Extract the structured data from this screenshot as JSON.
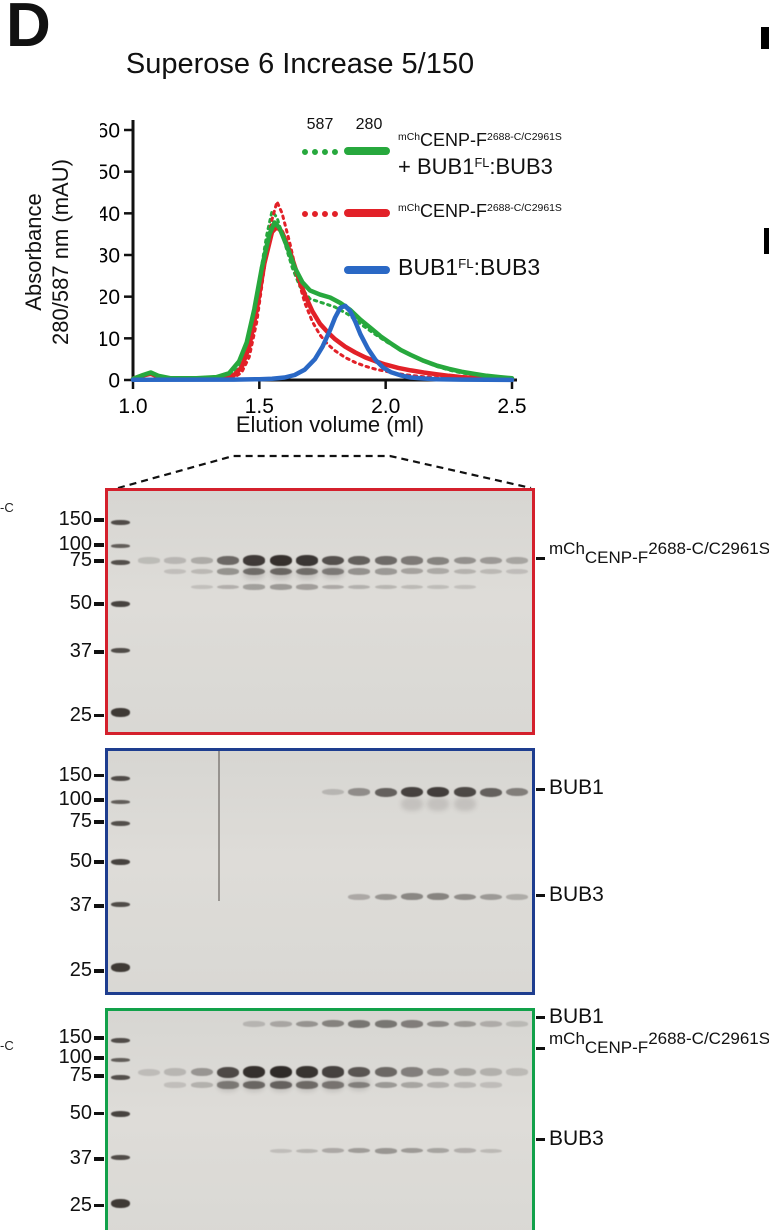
{
  "panel_label": "D",
  "chart_data": {
    "type": "line",
    "title": "Superose 6 Increase 5/150",
    "xlabel": "Elution volume (ml)",
    "ylabel_lines": [
      "Absorbance",
      "280/587 nm (mAU)"
    ],
    "xlim": [
      1.0,
      2.5
    ],
    "ylim": [
      0,
      60
    ],
    "xticks": [
      "1.0",
      "1.5",
      "2.0",
      "2.5"
    ],
    "yticks": [
      0,
      10,
      20,
      30,
      40,
      50,
      60
    ],
    "grid": false,
    "legend_position": "top-right",
    "series": [
      {
        "id": "complex-587",
        "name": "mChCENP-F2688-C/C2961S + BUB1FL:BUB3 (587 nm)",
        "wavelength": "587",
        "color": "#27a83d",
        "style": "dotted",
        "points": [
          [
            1.0,
            0.1
          ],
          [
            1.3,
            0.2
          ],
          [
            1.38,
            0.8
          ],
          [
            1.42,
            3
          ],
          [
            1.46,
            10
          ],
          [
            1.5,
            24
          ],
          [
            1.53,
            35
          ],
          [
            1.55,
            40.5
          ],
          [
            1.57,
            39
          ],
          [
            1.6,
            33
          ],
          [
            1.63,
            27
          ],
          [
            1.66,
            22.5
          ],
          [
            1.7,
            19.5
          ],
          [
            1.75,
            18.5
          ],
          [
            1.8,
            17.5
          ],
          [
            1.85,
            15.8
          ],
          [
            1.9,
            13.5
          ],
          [
            1.95,
            11.3
          ],
          [
            2.0,
            9.3
          ],
          [
            2.05,
            7.5
          ],
          [
            2.1,
            5.9
          ],
          [
            2.15,
            4.5
          ],
          [
            2.2,
            3.3
          ],
          [
            2.25,
            2.4
          ],
          [
            2.3,
            1.7
          ],
          [
            2.35,
            1.2
          ],
          [
            2.4,
            0.8
          ],
          [
            2.45,
            0.5
          ],
          [
            2.5,
            0.3
          ]
        ]
      },
      {
        "id": "cenpf-587",
        "name": "mChCENP-F2688-C/C2961S (587 nm)",
        "wavelength": "587",
        "color": "#e22128",
        "style": "dotted",
        "points": [
          [
            1.0,
            0.05
          ],
          [
            1.35,
            0.15
          ],
          [
            1.4,
            0.6
          ],
          [
            1.43,
            1.8
          ],
          [
            1.46,
            5.5
          ],
          [
            1.49,
            14
          ],
          [
            1.52,
            27
          ],
          [
            1.55,
            38.5
          ],
          [
            1.57,
            42.8
          ],
          [
            1.59,
            40
          ],
          [
            1.62,
            33
          ],
          [
            1.65,
            25
          ],
          [
            1.68,
            18.5
          ],
          [
            1.71,
            14
          ],
          [
            1.74,
            10.8
          ],
          [
            1.77,
            8.6
          ],
          [
            1.8,
            7.0
          ],
          [
            1.84,
            5.4
          ],
          [
            1.88,
            4.2
          ],
          [
            1.92,
            3.3
          ],
          [
            1.96,
            2.6
          ],
          [
            2.0,
            2.1
          ],
          [
            2.05,
            1.5
          ],
          [
            2.1,
            1.1
          ],
          [
            2.15,
            0.8
          ],
          [
            2.2,
            0.55
          ],
          [
            2.3,
            0.3
          ],
          [
            2.4,
            0.15
          ],
          [
            2.5,
            0.05
          ]
        ]
      },
      {
        "id": "cenpf-280",
        "name": "mChCENP-F2688-C/C2961S (280 nm)",
        "wavelength": "280",
        "color": "#e22128",
        "style": "solid",
        "points": [
          [
            1.0,
            0.3
          ],
          [
            1.04,
            1.1
          ],
          [
            1.07,
            1.5
          ],
          [
            1.1,
            0.8
          ],
          [
            1.15,
            0.3
          ],
          [
            1.25,
            0.3
          ],
          [
            1.35,
            0.5
          ],
          [
            1.4,
            1.2
          ],
          [
            1.43,
            3
          ],
          [
            1.46,
            8
          ],
          [
            1.49,
            17
          ],
          [
            1.52,
            28
          ],
          [
            1.55,
            35.5
          ],
          [
            1.57,
            36.8
          ],
          [
            1.59,
            35.5
          ],
          [
            1.62,
            31
          ],
          [
            1.65,
            25.5
          ],
          [
            1.68,
            20.5
          ],
          [
            1.71,
            16.5
          ],
          [
            1.74,
            13.5
          ],
          [
            1.77,
            11.5
          ],
          [
            1.8,
            9.8
          ],
          [
            1.84,
            8.0
          ],
          [
            1.88,
            6.6
          ],
          [
            1.92,
            5.4
          ],
          [
            1.96,
            4.5
          ],
          [
            2.0,
            3.7
          ],
          [
            2.05,
            2.9
          ],
          [
            2.1,
            2.3
          ],
          [
            2.15,
            1.8
          ],
          [
            2.2,
            1.4
          ],
          [
            2.25,
            1.0
          ],
          [
            2.3,
            0.7
          ],
          [
            2.35,
            0.5
          ],
          [
            2.4,
            0.35
          ],
          [
            2.45,
            0.2
          ],
          [
            2.5,
            0.1
          ]
        ]
      },
      {
        "id": "complex-280",
        "name": "mChCENP-F2688-C/C2961S + BUB1FL:BUB3 (280 nm)",
        "wavelength": "280",
        "color": "#27a83d",
        "style": "solid",
        "points": [
          [
            1.0,
            0.3
          ],
          [
            1.04,
            1.2
          ],
          [
            1.07,
            1.8
          ],
          [
            1.1,
            1.0
          ],
          [
            1.15,
            0.4
          ],
          [
            1.25,
            0.4
          ],
          [
            1.33,
            0.7
          ],
          [
            1.38,
            1.6
          ],
          [
            1.42,
            4.5
          ],
          [
            1.45,
            9
          ],
          [
            1.48,
            17
          ],
          [
            1.51,
            27
          ],
          [
            1.54,
            35
          ],
          [
            1.56,
            37.8
          ],
          [
            1.58,
            36.5
          ],
          [
            1.61,
            32
          ],
          [
            1.64,
            27
          ],
          [
            1.67,
            23.5
          ],
          [
            1.7,
            21.5
          ],
          [
            1.74,
            20.5
          ],
          [
            1.78,
            19.8
          ],
          [
            1.82,
            18.5
          ],
          [
            1.86,
            16.8
          ],
          [
            1.9,
            14.5
          ],
          [
            1.94,
            12.5
          ],
          [
            1.98,
            10.5
          ],
          [
            2.02,
            8.8
          ],
          [
            2.06,
            7.2
          ],
          [
            2.1,
            6.0
          ],
          [
            2.15,
            4.6
          ],
          [
            2.2,
            3.5
          ],
          [
            2.25,
            2.7
          ],
          [
            2.3,
            2.0
          ],
          [
            2.35,
            1.5
          ],
          [
            2.4,
            1.0
          ],
          [
            2.45,
            0.7
          ],
          [
            2.5,
            0.4
          ]
        ]
      },
      {
        "id": "bub1-bub3-280",
        "name": "BUB1FL:BUB3 (280 nm)",
        "wavelength": "280",
        "color": "#2a68c5",
        "style": "solid",
        "points": [
          [
            1.0,
            0.05
          ],
          [
            1.4,
            0.1
          ],
          [
            1.5,
            0.2
          ],
          [
            1.55,
            0.3
          ],
          [
            1.6,
            0.6
          ],
          [
            1.64,
            1.2
          ],
          [
            1.68,
            2.5
          ],
          [
            1.72,
            5
          ],
          [
            1.75,
            8
          ],
          [
            1.78,
            12
          ],
          [
            1.8,
            15
          ],
          [
            1.82,
            17.3
          ],
          [
            1.84,
            17.8
          ],
          [
            1.86,
            16.5
          ],
          [
            1.88,
            14
          ],
          [
            1.9,
            11
          ],
          [
            1.93,
            7.5
          ],
          [
            1.96,
            4.8
          ],
          [
            1.99,
            3.0
          ],
          [
            2.02,
            1.9
          ],
          [
            2.06,
            1.1
          ],
          [
            2.1,
            0.6
          ],
          [
            2.15,
            0.35
          ],
          [
            2.2,
            0.2
          ],
          [
            2.3,
            0.1
          ],
          [
            2.4,
            0.05
          ],
          [
            2.5,
            0.02
          ]
        ]
      }
    ]
  },
  "legend": {
    "col_587": "587",
    "col_280": "280",
    "rows": [
      {
        "color": "#27a83d",
        "dotted": true,
        "solid": true,
        "line1": {
          "pre": "mCh",
          "main": "CENP-F",
          "sup": "2688-C/C2961S"
        },
        "line2": {
          "lead": "+ BUB1",
          "sup": "FL",
          "tail": ":BUB3"
        }
      },
      {
        "color": "#e22128",
        "dotted": true,
        "solid": true,
        "line1": {
          "pre": "mCh",
          "main": "CENP-F",
          "sup": "2688-C/C2961S"
        }
      },
      {
        "color": "#2a68c5",
        "dotted": false,
        "solid": true,
        "line1": {
          "lead": "BUB1",
          "sup": "FL",
          "tail": ":BUB3"
        }
      }
    ]
  },
  "gels": [
    {
      "name": "mch-cenpf-2688c-alone",
      "frame_color": "#d4202c",
      "markers": [
        {
          "label": "150",
          "y": 0.13
        },
        {
          "label": "100",
          "y": 0.231
        },
        {
          "label": "75",
          "y": 0.296
        },
        {
          "label": "50",
          "y": 0.47
        },
        {
          "label": "37",
          "y": 0.664
        },
        {
          "label": "25",
          "y": 0.923
        }
      ],
      "right_labels": [
        {
          "pre": "mCh",
          "main": "CENP-F",
          "sup": "2688-C/C2961S",
          "y": 0.287,
          "size": "small"
        }
      ],
      "lanes": 15,
      "band_rows": [
        {
          "y": 0.29,
          "height": 6,
          "intensities": [
            0.05,
            0.08,
            0.16,
            0.6,
            0.9,
            0.97,
            0.93,
            0.75,
            0.65,
            0.58,
            0.48,
            0.42,
            0.33,
            0.27,
            0.2
          ]
        },
        {
          "y": 0.335,
          "height": 5,
          "intensities": [
            0,
            0.03,
            0.07,
            0.32,
            0.5,
            0.55,
            0.5,
            0.4,
            0.33,
            0.28,
            0.22,
            0.17,
            0.11,
            0.07,
            0.04
          ]
        },
        {
          "y": 0.4,
          "height": 4,
          "intensities": [
            0,
            0,
            0.03,
            0.14,
            0.24,
            0.28,
            0.25,
            0.18,
            0.13,
            0.1,
            0.07,
            0.05,
            0.03,
            0,
            0
          ]
        }
      ]
    },
    {
      "name": "bub1-bub3-alone",
      "frame_color": "#1e3d8f",
      "markers": [
        {
          "label": "150",
          "y": 0.113
        },
        {
          "label": "100",
          "y": 0.211
        },
        {
          "label": "75",
          "y": 0.3
        },
        {
          "label": "50",
          "y": 0.462
        },
        {
          "label": "37",
          "y": 0.64
        },
        {
          "label": "25",
          "y": 0.903
        }
      ],
      "right_labels": [
        {
          "main": "BUB1",
          "y": 0.166,
          "size": "large"
        },
        {
          "main": "BUB3",
          "y": 0.599,
          "size": "large"
        }
      ],
      "lanes": 15,
      "band_rows": [
        {
          "y": 0.172,
          "height": 6,
          "intensities": [
            0,
            0,
            0,
            0,
            0,
            0,
            0,
            0.08,
            0.35,
            0.65,
            0.85,
            0.88,
            0.8,
            0.65,
            0.45
          ]
        },
        {
          "y": 0.608,
          "height": 5,
          "intensities": [
            0,
            0,
            0,
            0,
            0,
            0,
            0,
            0,
            0.18,
            0.3,
            0.4,
            0.42,
            0.36,
            0.28,
            0.16
          ]
        }
      ]
    },
    {
      "name": "mch-cenpf-plus-bub1-bub3",
      "frame_color": "#12a14a",
      "markers": [
        {
          "label": "150",
          "y": 0.124
        },
        {
          "label": "100",
          "y": 0.207
        },
        {
          "label": "75",
          "y": 0.281
        },
        {
          "label": "50",
          "y": 0.438
        },
        {
          "label": "37",
          "y": 0.624
        },
        {
          "label": "25",
          "y": 0.818
        }
      ],
      "right_labels": [
        {
          "main": "BUB1",
          "y": 0.041,
          "size": "large"
        },
        {
          "pre": "mCh",
          "main": "CENP-F",
          "sup": "2688-C/C2961S",
          "y": 0.169,
          "size": "small"
        },
        {
          "main": "BUB3",
          "y": 0.545,
          "size": "large"
        }
      ],
      "lanes": 15,
      "band_rows": [
        {
          "y": 0.055,
          "height": 5,
          "intensities": [
            0,
            0,
            0,
            0,
            0.08,
            0.18,
            0.3,
            0.42,
            0.5,
            0.5,
            0.45,
            0.36,
            0.26,
            0.14,
            0.05
          ]
        },
        {
          "y": 0.26,
          "height": 7,
          "intensities": [
            0.04,
            0.08,
            0.3,
            0.8,
            0.97,
            1.0,
            0.95,
            0.85,
            0.72,
            0.6,
            0.45,
            0.3,
            0.2,
            0.12,
            0.06
          ]
        },
        {
          "y": 0.315,
          "height": 5,
          "intensities": [
            0,
            0.03,
            0.12,
            0.42,
            0.55,
            0.58,
            0.52,
            0.45,
            0.36,
            0.28,
            0.2,
            0.13,
            0.08,
            0.04,
            0
          ]
        },
        {
          "y": 0.595,
          "height": 4,
          "intensities": [
            0,
            0,
            0,
            0,
            0,
            0.04,
            0.1,
            0.18,
            0.26,
            0.3,
            0.27,
            0.21,
            0.14,
            0.07,
            0
          ]
        }
      ]
    }
  ],
  "crop_fragments": {
    "left_upper": "-C",
    "left_lower": "-C"
  }
}
